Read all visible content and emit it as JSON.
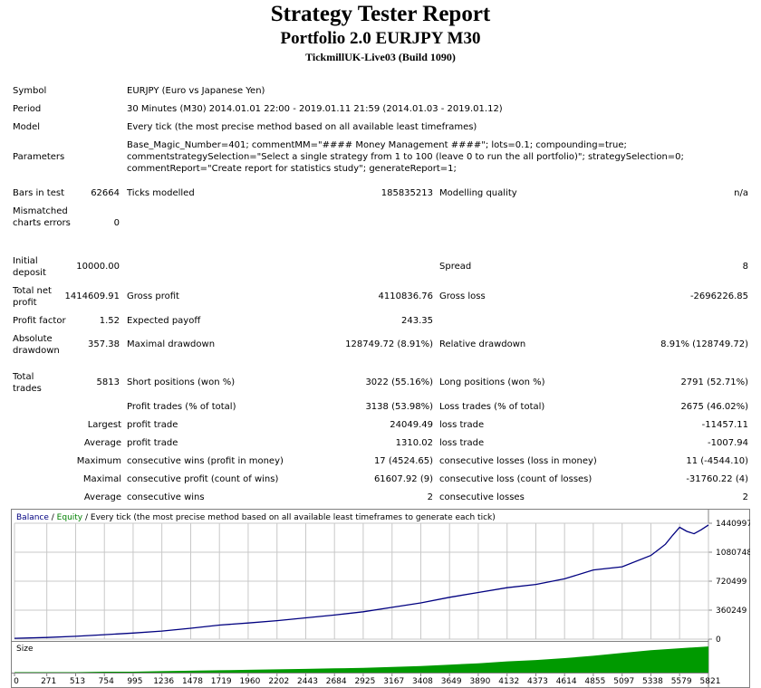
{
  "report": {
    "title": "Strategy Tester Report",
    "subtitle": "Portfolio 2.0 EURJPY M30",
    "server": "TickmillUK-Live03 (Build 1090)"
  },
  "settings": {
    "symbol_label": "Symbol",
    "symbol": "EURJPY (Euro vs Japanese Yen)",
    "period_label": "Period",
    "period": "30 Minutes (M30) 2014.01.01 22:00 - 2019.01.11 21:59 (2014.01.03 - 2019.01.12)",
    "model_label": "Model",
    "model": "Every tick (the most precise method based on all available least timeframes)",
    "parameters_label": "Parameters",
    "parameters": "Base_Magic_Number=401; commentMM=\"#### Money Management ####\"; lots=0.1; compounding=true; commentstrategySelection=\"Select a single strategy from 1 to 100 (leave 0 to run the all portfolio)\"; strategySelection=0; commentReport=\"Create report for statistics study\"; generateReport=1;"
  },
  "stats": {
    "bars_label": "Bars in test",
    "bars": "62664",
    "ticks_label": "Ticks modelled",
    "ticks": "185835213",
    "quality_label": "Modelling quality",
    "quality": "n/a",
    "mismatch_label": "Mismatched charts errors",
    "mismatch": "0",
    "deposit_label": "Initial deposit",
    "deposit": "10000.00",
    "spread_label": "Spread",
    "spread": "8",
    "net_label": "Total net profit",
    "net": "1414609.91",
    "gross_profit_label": "Gross profit",
    "gross_profit": "4110836.76",
    "gross_loss_label": "Gross loss",
    "gross_loss": "-2696226.85",
    "pf_label": "Profit factor",
    "pf": "1.52",
    "payoff_label": "Expected payoff",
    "payoff": "243.35",
    "abs_dd_label": "Absolute drawdown",
    "abs_dd": "357.38",
    "max_dd_label": "Maximal drawdown",
    "max_dd": "128749.72 (8.91%)",
    "rel_dd_label": "Relative drawdown",
    "rel_dd": "8.91% (128749.72)",
    "trades_label": "Total trades",
    "trades": "5813",
    "short_label": "Short positions (won %)",
    "short": "3022 (55.16%)",
    "long_label": "Long positions (won %)",
    "long": "2791 (52.71%)",
    "profit_trades_label": "Profit trades (% of total)",
    "profit_trades": "3138 (53.98%)",
    "loss_trades_label": "Loss trades (% of total)",
    "loss_trades": "2675 (46.02%)",
    "largest_label": "Largest",
    "largest_profit_label": "profit trade",
    "largest_profit": "24049.49",
    "largest_loss_label": "loss trade",
    "largest_loss": "-11457.11",
    "average_label": "Average",
    "average_profit_label": "profit trade",
    "average_profit": "1310.02",
    "average_loss_label": "loss trade",
    "average_loss": "-1007.94",
    "maximum_label": "Maximum",
    "max_cons_wins_label": "consecutive wins (profit in money)",
    "max_cons_wins": "17 (4524.65)",
    "max_cons_losses_label": "consecutive losses (loss in money)",
    "max_cons_losses": "11 (-4544.10)",
    "maximal_label": "Maximal",
    "maximal_cons_profit_label": "consecutive profit (count of wins)",
    "maximal_cons_profit": "61607.92 (9)",
    "maximal_cons_loss_label": "consecutive loss (count of losses)",
    "maximal_cons_loss": "-31760.22 (4)",
    "avg2_label": "Average",
    "avg_cons_wins_label": "consecutive wins",
    "avg_cons_wins": "2",
    "avg_cons_losses_label": "consecutive losses",
    "avg_cons_losses": "2"
  },
  "chart_data": {
    "type": "line",
    "legend": {
      "balance": "Balance",
      "sep1": " / ",
      "equity": "Equity",
      "sep2": " / ",
      "rest": "Every tick (the most precise method based on all available least timeframes to generate each tick)"
    },
    "colors": {
      "balance": "#000080",
      "equity": "#008000",
      "size": "#009a00",
      "grid": "#c8c8c8"
    },
    "y_ticks": [
      1440997,
      1080748,
      720499,
      360249,
      0
    ],
    "ylim": [
      0,
      1440997
    ],
    "x_ticks": [
      0,
      271,
      513,
      754,
      995,
      1236,
      1478,
      1719,
      1960,
      2202,
      2443,
      2684,
      2925,
      3167,
      3408,
      3649,
      3890,
      4132,
      4373,
      4614,
      4855,
      5097,
      5338,
      5579,
      5821
    ],
    "xlim": [
      0,
      5821
    ],
    "size_label": "Size",
    "series": [
      {
        "name": "Balance",
        "x": [
          0,
          271,
          513,
          754,
          995,
          1236,
          1478,
          1719,
          1960,
          2202,
          2443,
          2684,
          2925,
          3167,
          3408,
          3649,
          3890,
          4132,
          4373,
          4614,
          4855,
          5097,
          5338,
          5400,
          5460,
          5520,
          5579,
          5640,
          5700,
          5760,
          5821
        ],
        "values": [
          10000,
          20000,
          35000,
          55000,
          75000,
          100000,
          135000,
          175000,
          200000,
          230000,
          265000,
          300000,
          340000,
          395000,
          450000,
          520000,
          580000,
          640000,
          680000,
          750000,
          860000,
          900000,
          1040000,
          1110000,
          1180000,
          1290000,
          1390000,
          1340000,
          1310000,
          1360000,
          1420000
        ]
      }
    ],
    "size_series": {
      "x": [
        0,
        271,
        513,
        754,
        995,
        1236,
        1478,
        1719,
        1960,
        2202,
        2443,
        2684,
        2925,
        3167,
        3408,
        3649,
        3890,
        4132,
        4373,
        4614,
        4855,
        5097,
        5338,
        5579,
        5821
      ],
      "values": [
        0.01,
        0.01,
        0.01,
        0.02,
        0.02,
        0.03,
        0.04,
        0.05,
        0.06,
        0.07,
        0.08,
        0.09,
        0.1,
        0.12,
        0.14,
        0.17,
        0.2,
        0.24,
        0.27,
        0.31,
        0.36,
        0.42,
        0.48,
        0.52,
        0.56
      ],
      "ylim": [
        0,
        0.6
      ]
    }
  }
}
